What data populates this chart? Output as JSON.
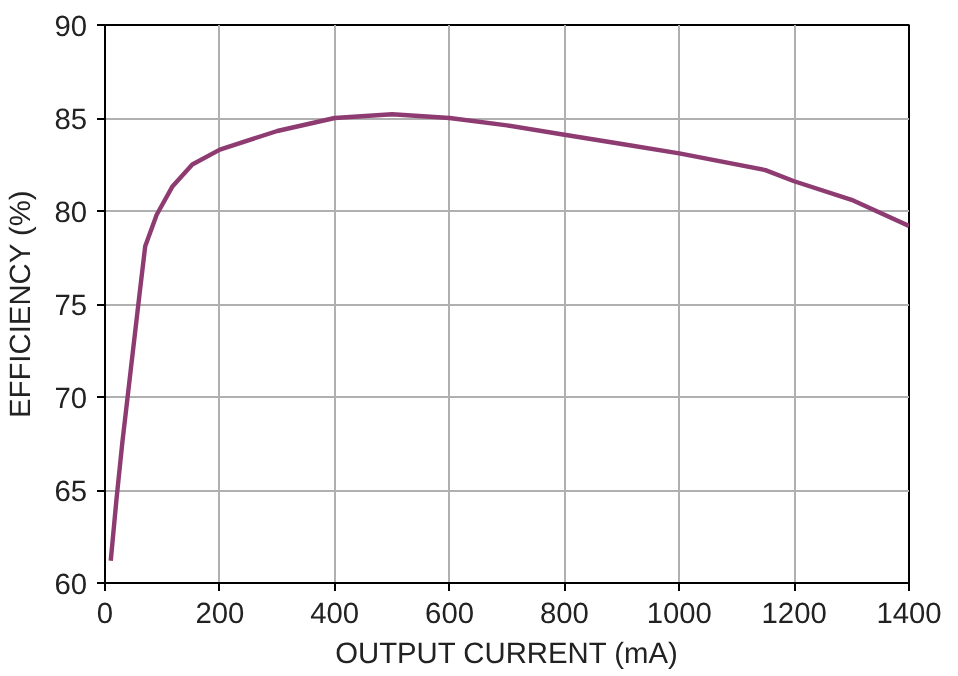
{
  "chart_data": {
    "type": "line",
    "xlabel": "OUTPUT CURRENT (mA)",
    "ylabel": "EFFICIENCY (%)",
    "x": [
      10,
      20,
      30,
      45,
      60,
      70,
      90,
      117,
      152,
      200,
      300,
      400,
      500,
      600,
      700,
      800,
      900,
      1000,
      1150,
      1200,
      1300,
      1400
    ],
    "series": [
      {
        "color": "#8e3b72",
        "values": [
          61.2,
          64.5,
          67.5,
          71.5,
          75.5,
          78.1,
          79.8,
          81.3,
          82.5,
          83.3,
          84.3,
          85.0,
          85.2,
          85.0,
          84.6,
          84.1,
          83.6,
          83.1,
          82.2,
          81.6,
          80.6,
          79.2
        ]
      }
    ],
    "xlim": [
      0,
      1400
    ],
    "ylim": [
      60,
      90
    ],
    "xticks": [
      0,
      200,
      400,
      600,
      800,
      1000,
      1200,
      1400
    ],
    "yticks": [
      60,
      65,
      70,
      75,
      80,
      85,
      90
    ],
    "grid": true,
    "line_style": "solid"
  }
}
